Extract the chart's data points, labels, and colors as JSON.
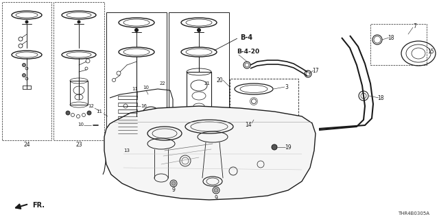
{
  "bg": "#ffffff",
  "lc": "#1a1a1a",
  "figsize": [
    6.4,
    3.2
  ],
  "dpi": 100,
  "catalog": "THR4B0305A"
}
